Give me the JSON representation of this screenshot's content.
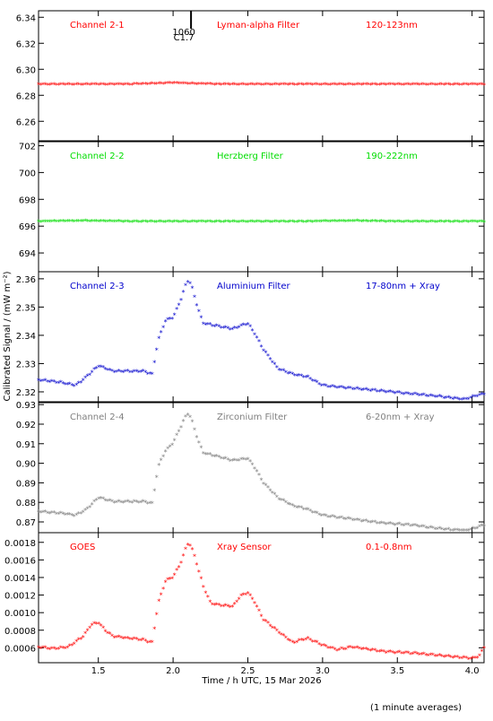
{
  "chart_data": {
    "type": "scatter",
    "xlabel": "Time / h UTC, 15 Mar 2026",
    "ylabel": "Calibrated Signal / (mW m⁻²)",
    "footnote": "(1 minute averages)",
    "xlim": [
      1.1,
      4.08
    ],
    "xticks": [
      "1.5",
      "2.0",
      "2.5",
      "3.0",
      "3.5",
      "4.0"
    ],
    "xtick_values": [
      1.5,
      2.0,
      2.5,
      3.0,
      3.5,
      4.0
    ],
    "flare_marker": {
      "x": 2.12,
      "labels": [
        "1060",
        "C1.7"
      ]
    },
    "panels": [
      {
        "channel": "Channel 2-1",
        "filter": "Lyman-alpha Filter",
        "band": "120-123nm",
        "color": "#ff0000",
        "ylim": [
          6.245,
          6.345
        ],
        "yticks": [
          "6.34",
          "6.32",
          "6.30",
          "6.28",
          "6.26"
        ],
        "ytick_values": [
          6.34,
          6.32,
          6.3,
          6.28,
          6.26
        ],
        "series": {
          "x": [
            1.1,
            1.4,
            1.7,
            2.0,
            2.3,
            2.6,
            2.9,
            3.2,
            3.5,
            3.8,
            4.08
          ],
          "y": [
            6.288,
            6.288,
            6.288,
            6.289,
            6.288,
            6.288,
            6.288,
            6.288,
            6.288,
            6.288,
            6.288
          ]
        }
      },
      {
        "channel": "Channel 2-2",
        "filter": "Herzberg Filter",
        "band": "190-222nm",
        "color": "#00dd00",
        "ylim": [
          692.6,
          702.3
        ],
        "yticks": [
          "702",
          "700",
          "698",
          "696",
          "694"
        ],
        "ytick_values": [
          702,
          700,
          698,
          696,
          694
        ],
        "series": {
          "x": [
            1.1,
            1.4,
            1.7,
            2.0,
            2.3,
            2.6,
            2.9,
            3.2,
            3.5,
            3.8,
            4.08
          ],
          "y": [
            696.3,
            696.35,
            696.3,
            696.3,
            696.3,
            696.3,
            696.3,
            696.35,
            696.3,
            696.3,
            696.3
          ]
        }
      },
      {
        "channel": "Channel 2-3",
        "filter": "Aluminium Filter",
        "band": "17-80nm + Xray",
        "color": "#0000cc",
        "ylim": [
          2.3165,
          2.3625
        ],
        "yticks": [
          "2.36",
          "2.35",
          "2.34",
          "2.33",
          "2.32"
        ],
        "ytick_values": [
          2.36,
          2.35,
          2.34,
          2.33,
          2.32
        ],
        "series": {
          "x": [
            1.1,
            1.25,
            1.35,
            1.42,
            1.5,
            1.6,
            1.7,
            1.8,
            1.86,
            1.9,
            1.95,
            2.0,
            2.05,
            2.08,
            2.1,
            2.12,
            2.15,
            2.2,
            2.3,
            2.4,
            2.5,
            2.55,
            2.6,
            2.7,
            2.8,
            2.9,
            3.0,
            3.2,
            3.4,
            3.6,
            3.8,
            3.95,
            4.0,
            4.08
          ],
          "y": [
            2.324,
            2.323,
            2.322,
            2.325,
            2.329,
            2.327,
            2.327,
            2.327,
            2.326,
            2.338,
            2.345,
            2.346,
            2.352,
            2.357,
            2.359,
            2.358,
            2.352,
            2.344,
            2.343,
            2.342,
            2.344,
            2.34,
            2.335,
            2.328,
            2.326,
            2.325,
            2.322,
            2.321,
            2.32,
            2.319,
            2.318,
            2.317,
            2.318,
            2.319
          ]
        }
      },
      {
        "channel": "Channel 2-4",
        "filter": "Zirconium Filter",
        "band": "6-20nm + Xray",
        "color": "#808080",
        "ylim": [
          0.8645,
          0.931
        ],
        "yticks": [
          "0.93",
          "0.92",
          "0.91",
          "0.90",
          "0.89",
          "0.88",
          "0.87"
        ],
        "ytick_values": [
          0.93,
          0.92,
          0.91,
          0.9,
          0.89,
          0.88,
          0.87
        ],
        "series": {
          "x": [
            1.1,
            1.25,
            1.35,
            1.42,
            1.5,
            1.6,
            1.7,
            1.8,
            1.86,
            1.9,
            1.95,
            2.0,
            2.05,
            2.08,
            2.1,
            2.12,
            2.15,
            2.2,
            2.3,
            2.4,
            2.5,
            2.55,
            2.6,
            2.7,
            2.8,
            2.9,
            3.0,
            3.2,
            3.4,
            3.6,
            3.8,
            3.95,
            4.0,
            4.08
          ],
          "y": [
            0.875,
            0.874,
            0.873,
            0.876,
            0.882,
            0.88,
            0.88,
            0.88,
            0.879,
            0.898,
            0.906,
            0.91,
            0.918,
            0.923,
            0.925,
            0.923,
            0.915,
            0.905,
            0.903,
            0.901,
            0.902,
            0.897,
            0.89,
            0.882,
            0.878,
            0.876,
            0.873,
            0.871,
            0.869,
            0.868,
            0.866,
            0.865,
            0.866,
            0.868
          ]
        }
      },
      {
        "channel": "GOES",
        "filter": "Xray Sensor",
        "band": "0.1-0.8nm",
        "color": "#ff0000",
        "ylim": [
          0.00043,
          0.00191
        ],
        "yticks": [
          "0.0018",
          "0.0016",
          "0.0014",
          "0.0012",
          "0.0010",
          "0.0008",
          "0.0006"
        ],
        "ytick_values": [
          0.0018,
          0.0016,
          0.0014,
          0.0012,
          0.001,
          0.0008,
          0.0006
        ],
        "series": {
          "x": [
            1.1,
            1.2,
            1.3,
            1.4,
            1.45,
            1.5,
            1.55,
            1.6,
            1.7,
            1.8,
            1.86,
            1.9,
            1.95,
            2.0,
            2.05,
            2.08,
            2.1,
            2.12,
            2.15,
            2.2,
            2.25,
            2.3,
            2.4,
            2.45,
            2.5,
            2.55,
            2.6,
            2.7,
            2.8,
            2.9,
            3.0,
            3.1,
            3.2,
            3.4,
            3.6,
            3.8,
            3.95,
            4.0,
            4.05,
            4.08
          ],
          "y": [
            0.0006,
            0.00058,
            0.0006,
            0.00072,
            0.00085,
            0.00088,
            0.00078,
            0.00072,
            0.0007,
            0.00068,
            0.00065,
            0.0011,
            0.00135,
            0.0014,
            0.00155,
            0.0017,
            0.00178,
            0.00175,
            0.0016,
            0.0013,
            0.0011,
            0.00108,
            0.00106,
            0.00118,
            0.00122,
            0.0011,
            0.00092,
            0.00078,
            0.00065,
            0.0007,
            0.00062,
            0.00057,
            0.0006,
            0.00055,
            0.00053,
            0.0005,
            0.00048,
            0.00047,
            0.0005,
            0.0006
          ]
        }
      }
    ]
  }
}
